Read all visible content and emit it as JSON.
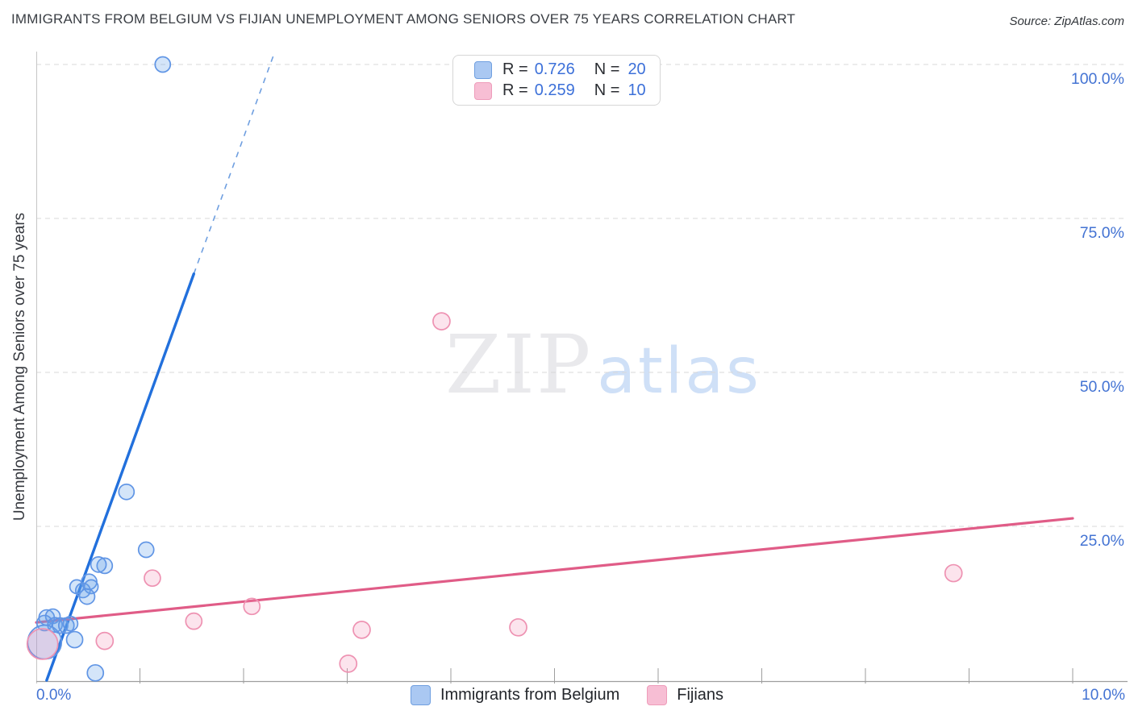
{
  "page": {
    "title": "IMMIGRANTS FROM BELGIUM VS FIJIAN UNEMPLOYMENT AMONG SENIORS OVER 75 YEARS CORRELATION CHART",
    "source": "Source: ZipAtlas.com"
  },
  "y_axis_title": "Unemployment Among Seniors over 75 years",
  "watermark": {
    "zip": "ZIP",
    "atlas": "atlas"
  },
  "legend_box": {
    "rows": [
      {
        "series": "belgium",
        "r_label": "R =",
        "r_value": "0.726",
        "n_label": "N =",
        "n_value": "20"
      },
      {
        "series": "fijians",
        "r_label": "R =",
        "r_value": "0.259",
        "n_label": "N =",
        "n_value": "10"
      }
    ]
  },
  "bottom_legend": {
    "items": [
      {
        "series": "belgium",
        "label": "Immigrants from Belgium"
      },
      {
        "series": "fijians",
        "label": "Fijians"
      }
    ]
  },
  "colors": {
    "belgium_fill": "rgba(100,160,235,0.28)",
    "belgium_stroke": "#6095e5",
    "belgium_line": "#2270dc",
    "belgium_dash": "#6f9fe0",
    "fijians_fill": "rgba(240,130,175,0.22)",
    "fijians_stroke": "#ee92b2",
    "fijians_line": "#e05c87",
    "legend_belgium_fill": "#aac8f2",
    "legend_belgium_stroke": "#6f9fe0",
    "legend_fijians_fill": "#f7bed4",
    "legend_fijians_stroke": "#ee9cba",
    "axis_label_blue": "#4373d3",
    "gridline": "#d8d8d8",
    "axis_line": "#9e9e9e",
    "y_axis_line": "#c6c6c6"
  },
  "chart_data": {
    "type": "scatter",
    "title": "IMMIGRANTS FROM BELGIUM VS FIJIAN UNEMPLOYMENT AMONG SENIORS OVER 75 YEARS CORRELATION CHART",
    "x_axis": {
      "min": 0,
      "max": 10,
      "unit": "%",
      "tick_step": 1,
      "labels_shown": [
        "0.0%",
        "10.0%"
      ]
    },
    "y_axis": {
      "min": 0,
      "max": 100,
      "unit": "%",
      "gridlines": [
        25,
        50,
        75,
        100
      ],
      "labels_shown": [
        "25.0%",
        "50.0%",
        "75.0%",
        "100.0%"
      ],
      "label_side": "right"
    },
    "series": [
      {
        "name": "Immigrants from Belgium",
        "r": 0.726,
        "n": 20,
        "points": [
          {
            "x": 1.22,
            "y": 100.0,
            "r": 9.5
          },
          {
            "x": 0.87,
            "y": 30.6,
            "r": 9.5
          },
          {
            "x": 1.06,
            "y": 21.2,
            "r": 9.5
          },
          {
            "x": 0.66,
            "y": 18.6,
            "r": 9.5
          },
          {
            "x": 0.6,
            "y": 18.8,
            "r": 9.5
          },
          {
            "x": 0.51,
            "y": 16.0,
            "r": 9.5
          },
          {
            "x": 0.39,
            "y": 15.2,
            "r": 8.5
          },
          {
            "x": 0.45,
            "y": 14.6,
            "r": 9.0
          },
          {
            "x": 0.53,
            "y": 15.2,
            "r": 8.5
          },
          {
            "x": 0.49,
            "y": 13.6,
            "r": 9.5
          },
          {
            "x": 0.1,
            "y": 10.2,
            "r": 9.5
          },
          {
            "x": 0.16,
            "y": 10.4,
            "r": 9.0
          },
          {
            "x": 0.08,
            "y": 9.3,
            "r": 9.5
          },
          {
            "x": 0.18,
            "y": 9.0,
            "r": 9.0
          },
          {
            "x": 0.23,
            "y": 8.9,
            "r": 9.5
          },
          {
            "x": 0.29,
            "y": 8.9,
            "r": 9.5
          },
          {
            "x": 0.33,
            "y": 9.2,
            "r": 9.0
          },
          {
            "x": 0.37,
            "y": 6.6,
            "r": 10.0
          },
          {
            "x": 0.57,
            "y": 1.2,
            "r": 10.0
          },
          {
            "x": 0.08,
            "y": 6.2,
            "r": 21.0
          }
        ],
        "trend": {
          "x_start": 0.1,
          "y_start": 0,
          "x_solid_end": 1.52,
          "y_solid_end": 66,
          "x_dash_end": 2.3,
          "y_dash_end": 102
        }
      },
      {
        "name": "Fijians",
        "r": 0.259,
        "n": 10,
        "points": [
          {
            "x": 0.06,
            "y": 5.9,
            "r": 19.0
          },
          {
            "x": 0.66,
            "y": 6.4,
            "r": 10.5
          },
          {
            "x": 1.12,
            "y": 16.6,
            "r": 10.0
          },
          {
            "x": 1.52,
            "y": 9.6,
            "r": 10.0
          },
          {
            "x": 2.08,
            "y": 12.0,
            "r": 10.0
          },
          {
            "x": 3.01,
            "y": 2.7,
            "r": 10.5
          },
          {
            "x": 3.14,
            "y": 8.2,
            "r": 10.5
          },
          {
            "x": 3.91,
            "y": 58.3,
            "r": 10.5
          },
          {
            "x": 4.65,
            "y": 8.6,
            "r": 10.5
          },
          {
            "x": 8.85,
            "y": 17.4,
            "r": 10.5
          }
        ],
        "trend": {
          "x_start": 0,
          "y_start": 9.4,
          "x_end": 10,
          "y_end": 26.3
        }
      }
    ]
  }
}
